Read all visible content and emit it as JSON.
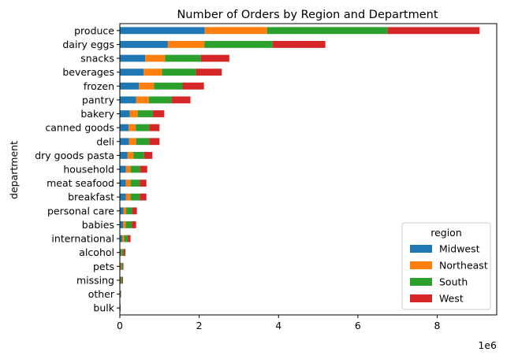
{
  "chart_data": {
    "type": "bar",
    "orientation": "horizontal",
    "stacked": true,
    "title": "Number of Orders by Region and Department",
    "xlabel": "",
    "ylabel": "department",
    "x_scale_label": "1e6",
    "xlim": [
      0,
      9.5
    ],
    "x_ticks": [
      0,
      2,
      4,
      6,
      8
    ],
    "x_tick_labels": [
      "0",
      "2",
      "4",
      "6",
      "8"
    ],
    "grid": false,
    "legend": {
      "title": "region",
      "placement": "lower-right"
    },
    "categories": [
      "produce",
      "dairy eggs",
      "snacks",
      "beverages",
      "frozen",
      "pantry",
      "bakery",
      "canned goods",
      "deli",
      "dry goods pasta",
      "household",
      "meat seafood",
      "breakfast",
      "personal care",
      "babies",
      "international",
      "alcohol",
      "pets",
      "missing",
      "other",
      "bulk"
    ],
    "series": [
      {
        "name": "Midwest",
        "color": "#1f77b4",
        "values": [
          2.14,
          1.21,
          0.64,
          0.6,
          0.48,
          0.41,
          0.25,
          0.22,
          0.23,
          0.19,
          0.15,
          0.15,
          0.15,
          0.09,
          0.08,
          0.06,
          0.03,
          0.02,
          0.02,
          0.01,
          0.01
        ]
      },
      {
        "name": "Northeast",
        "color": "#ff7f0e",
        "values": [
          1.57,
          0.92,
          0.5,
          0.46,
          0.38,
          0.32,
          0.2,
          0.18,
          0.18,
          0.15,
          0.12,
          0.12,
          0.12,
          0.07,
          0.07,
          0.05,
          0.02,
          0.02,
          0.01,
          0.0,
          0.0
        ]
      },
      {
        "name": "South",
        "color": "#2ca02c",
        "values": [
          3.04,
          1.72,
          0.9,
          0.86,
          0.72,
          0.58,
          0.38,
          0.34,
          0.33,
          0.27,
          0.24,
          0.23,
          0.23,
          0.15,
          0.15,
          0.09,
          0.05,
          0.03,
          0.03,
          0.01,
          0.01
        ]
      },
      {
        "name": "West",
        "color": "#d62728",
        "values": [
          2.32,
          1.33,
          0.72,
          0.65,
          0.54,
          0.47,
          0.29,
          0.26,
          0.26,
          0.21,
          0.18,
          0.17,
          0.17,
          0.12,
          0.11,
          0.07,
          0.04,
          0.02,
          0.02,
          0.01,
          0.0
        ]
      }
    ]
  }
}
